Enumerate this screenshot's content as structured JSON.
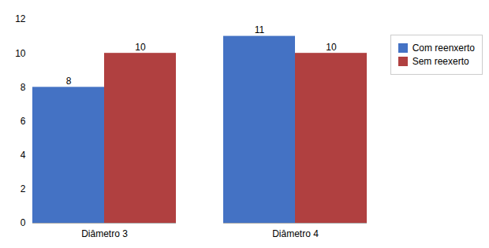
{
  "chart_data": {
    "type": "bar",
    "categories": [
      "Diâmetro 3",
      "Diâmetro 4"
    ],
    "series": [
      {
        "name": "Com reenxerto",
        "color": "#4472C4",
        "values": [
          8,
          11
        ]
      },
      {
        "name": "Sem reexerto",
        "color": "#B04040",
        "values": [
          10,
          10
        ]
      }
    ],
    "ylim": [
      0,
      12
    ],
    "yticks": [
      0,
      2,
      4,
      6,
      8,
      10,
      12
    ],
    "grid": false,
    "legend": "upper right",
    "data_labels": true
  }
}
